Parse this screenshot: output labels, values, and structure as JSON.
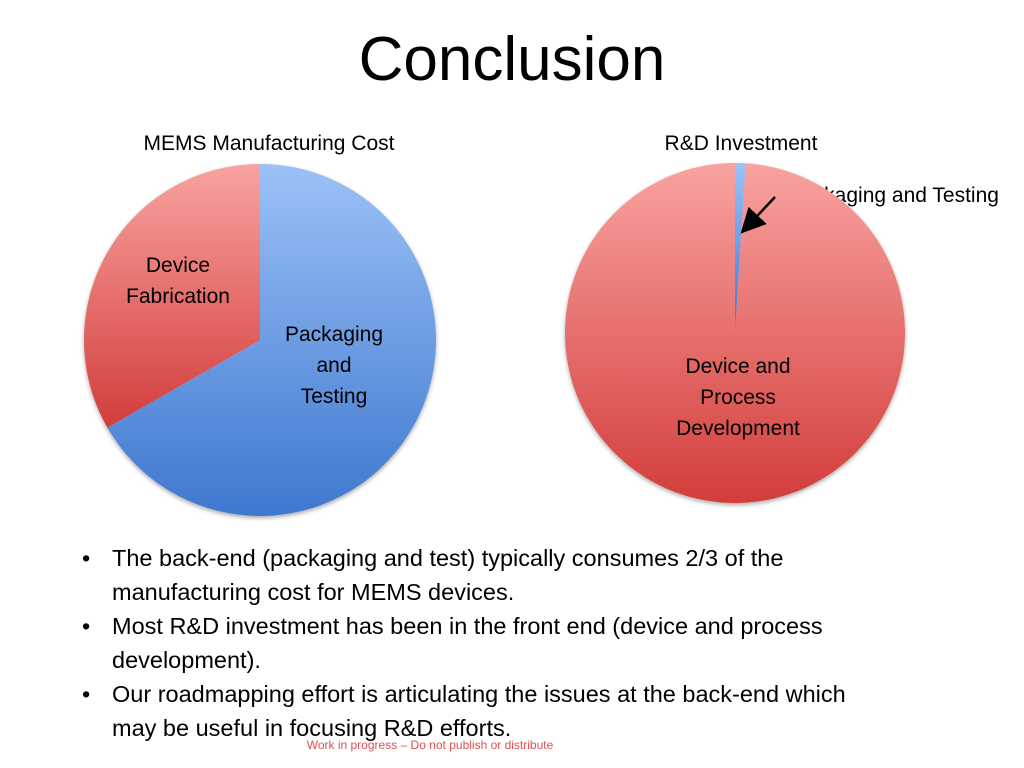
{
  "slide": {
    "title": "Conclusion",
    "footer": "Work in progress – Do not publish or distribute"
  },
  "chart_data": [
    {
      "type": "pie",
      "title": "MEMS Manufacturing Cost",
      "slices": [
        {
          "label": "Packaging and Testing",
          "label_lines": [
            "Packaging",
            "and",
            "Testing"
          ],
          "value": 66.7,
          "color": "#5b8ed6"
        },
        {
          "label": "Device Fabrication",
          "label_lines": [
            "Device",
            "Fabrication"
          ],
          "value": 33.3,
          "color": "#e06060"
        }
      ]
    },
    {
      "type": "pie",
      "title": "R&D Investment",
      "slices": [
        {
          "label": "Packaging and Testing",
          "label_lines": [
            "Packaging and Testing"
          ],
          "value": 1,
          "color": "#5b8ed6"
        },
        {
          "label": "Device and Process Development",
          "label_lines": [
            "Device and",
            "Process",
            "Development"
          ],
          "value": 99,
          "color": "#e06060"
        }
      ]
    }
  ],
  "bullets": [
    {
      "lines": [
        "The back-end (packaging and test) typically consumes 2/3 of the",
        "manufacturing cost for MEMS devices."
      ]
    },
    {
      "lines": [
        "Most R&D investment has been in the front end (device and process",
        "development)."
      ]
    },
    {
      "lines": [
        "Our roadmapping effort is articulating the issues at the back-end which",
        "may be useful in focusing R&D efforts."
      ]
    }
  ]
}
